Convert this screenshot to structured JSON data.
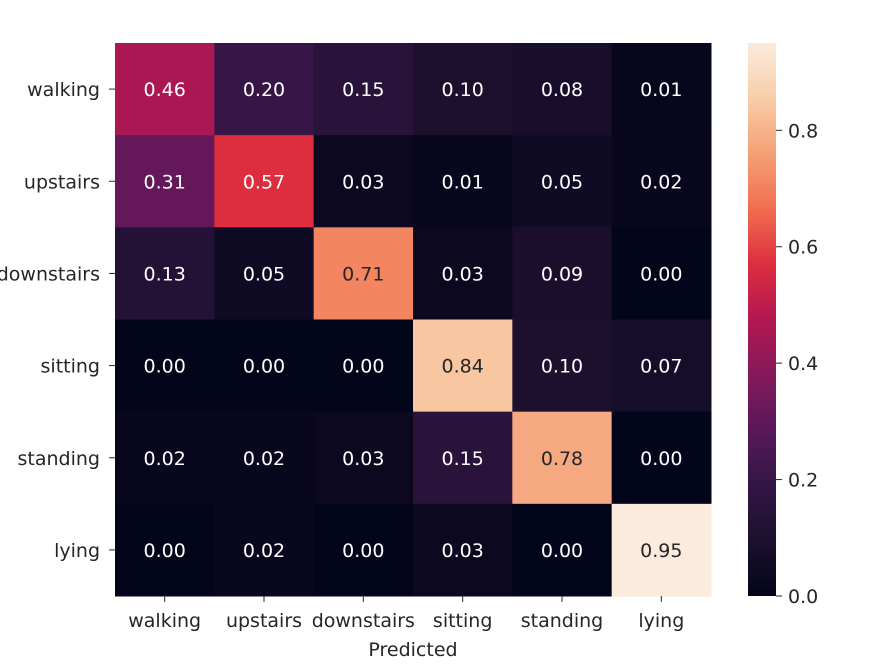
{
  "chart_data": {
    "type": "heatmap",
    "xlabel": "Predicted",
    "ylabel": "",
    "x_categories": [
      "walking",
      "upstairs",
      "downstairs",
      "sitting",
      "standing",
      "lying"
    ],
    "y_categories": [
      "walking",
      "upstairs",
      "downstairs",
      "sitting",
      "standing",
      "lying"
    ],
    "values": [
      [
        0.46,
        0.2,
        0.15,
        0.1,
        0.08,
        0.01
      ],
      [
        0.31,
        0.57,
        0.03,
        0.01,
        0.05,
        0.02
      ],
      [
        0.13,
        0.05,
        0.71,
        0.03,
        0.09,
        0.0
      ],
      [
        0.0,
        0.0,
        0.0,
        0.84,
        0.1,
        0.07
      ],
      [
        0.02,
        0.02,
        0.03,
        0.15,
        0.78,
        0.0
      ],
      [
        0.0,
        0.02,
        0.0,
        0.03,
        0.0,
        0.95
      ]
    ],
    "value_range": [
      0.0,
      0.95
    ],
    "colormap": "rocket",
    "colorbar": {
      "ticks": [
        0.0,
        0.2,
        0.4,
        0.6,
        0.8
      ],
      "tick_labels": [
        "0.0",
        "0.2",
        "0.4",
        "0.6",
        "0.8"
      ]
    },
    "grid": false
  }
}
